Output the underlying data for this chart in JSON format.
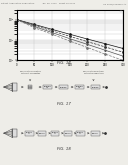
{
  "bg_color": "#eeede8",
  "header_text": "Patent Application Publication",
  "header_text2": "Jan. 26, 2012   Sheet 15 of 21",
  "header_text3": "US 2012/0023900 A1",
  "fig16_label": "FIG. 16",
  "fig17_label": "FIG. 17",
  "fig18_label": "FIG. 18",
  "graph": {
    "x_values": [
      0,
      50,
      100,
      150,
      200,
      250,
      300
    ],
    "series1": [
      100000,
      58000,
      33000,
      19000,
      11000,
      6500,
      3800
    ],
    "series2": [
      100000,
      52000,
      28000,
      15000,
      8200,
      4500,
      2500
    ],
    "series3": [
      100000,
      46000,
      23000,
      11500,
      6000,
      3100,
      1600
    ],
    "series4": [
      100000,
      40000,
      19000,
      8800,
      4200,
      2000,
      1000
    ],
    "grid_color": "#bbbbbb",
    "line_color": "#333333"
  }
}
